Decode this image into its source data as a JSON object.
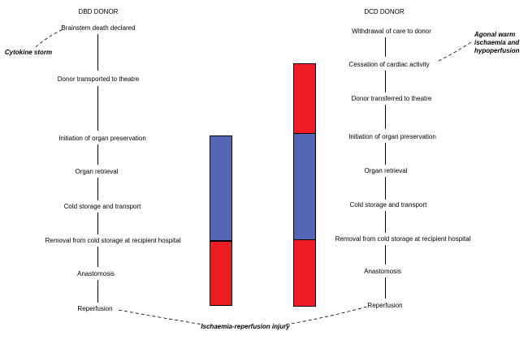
{
  "dbd": {
    "title": "DBD DONOR",
    "steps": [
      "Brainstem death declared",
      "Donor transported to theatre",
      "Initiation of organ preservation",
      "Organ retrieval",
      "Cold storage and transport",
      "Removal from cold storage at recipient hospital",
      "Anastomosis",
      "Reperfusion"
    ],
    "annotation": "Cytokine storm"
  },
  "dcd": {
    "title": "DCD DONOR",
    "steps": [
      "Withdrawal of care to donor",
      "Cessation of cardiac activity",
      "Donor transferred to theatre",
      "Initiation of organ preservation",
      "Organ retrieval",
      "Cold storage and transport",
      "Removal from cold storage at recipient hospital",
      "Anastomosis",
      "Reperfusion"
    ],
    "annotation_lines": [
      "Agonal warm",
      "ischaemia and",
      "hypoperfusion"
    ]
  },
  "injury_label": "Ischaemia-reperfusion injury",
  "colors": {
    "warm_ischaemia": "#ee1c25",
    "cold_ischaemia": "#5565b5"
  }
}
